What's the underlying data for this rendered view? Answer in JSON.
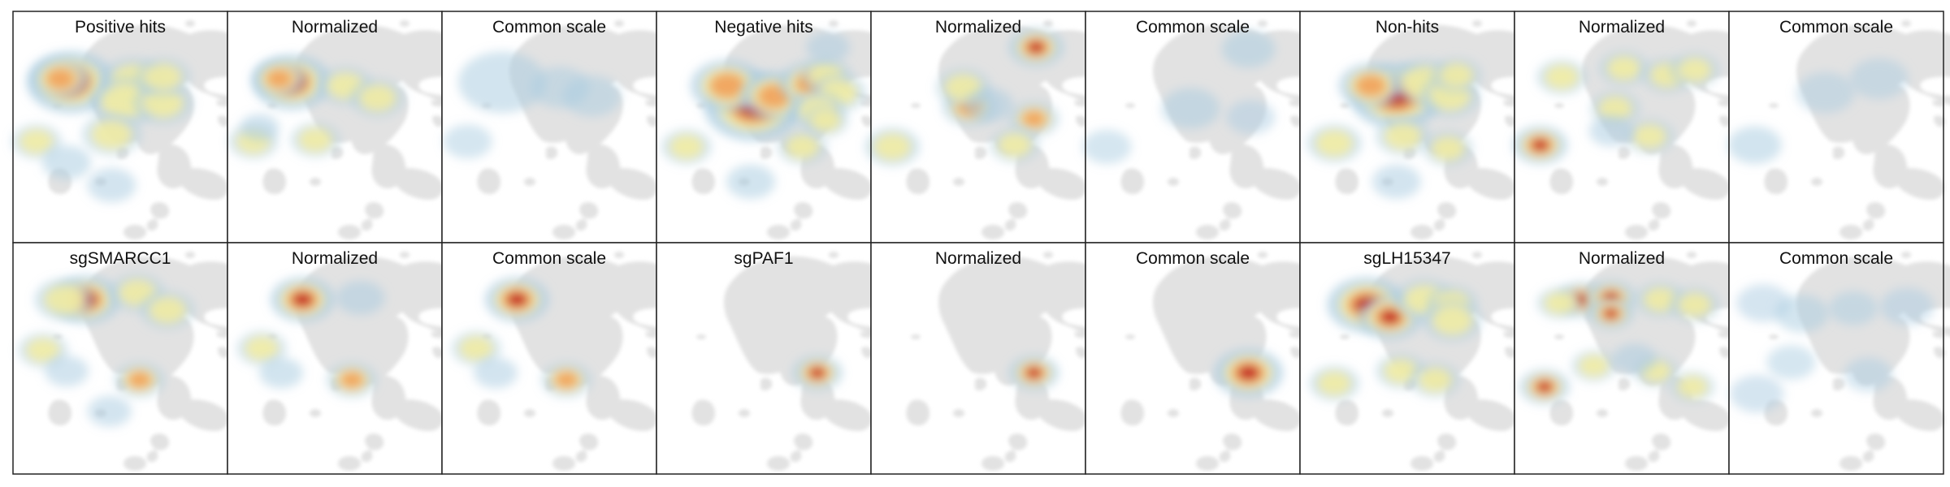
{
  "colors": {
    "background_cells": "#e2e2e2",
    "panel_border": "#222222",
    "density_low": "#a9cbe0",
    "density_mid": "#f4eda0",
    "density_high": "#f2a15a",
    "density_max": "#c0161e"
  },
  "panels": [
    {
      "title": "Positive hits",
      "hotspots": [
        [
          0.27,
          0.22,
          0.95,
          1.8
        ],
        [
          0.22,
          0.2,
          0.8,
          1.2
        ],
        [
          0.56,
          0.21,
          0.4,
          1.3
        ],
        [
          0.52,
          0.33,
          0.45,
          1.4
        ],
        [
          0.7,
          0.34,
          0.45,
          1.2
        ],
        [
          0.7,
          0.19,
          0.3,
          1.1
        ],
        [
          0.11,
          0.56,
          0.35,
          1.0
        ],
        [
          0.46,
          0.52,
          0.3,
          1.2
        ],
        [
          0.25,
          0.68,
          0.25,
          1.0
        ],
        [
          0.46,
          0.81,
          0.2,
          1.0
        ]
      ]
    },
    {
      "title": "Normalized",
      "hotspots": [
        [
          0.3,
          0.22,
          0.95,
          1.6
        ],
        [
          0.24,
          0.2,
          0.8,
          1.1
        ],
        [
          0.55,
          0.24,
          0.35,
          1.1
        ],
        [
          0.7,
          0.31,
          0.3,
          1.1
        ],
        [
          0.12,
          0.56,
          0.35,
          1.0
        ],
        [
          0.41,
          0.55,
          0.3,
          1.0
        ],
        [
          0.15,
          0.48,
          0.2,
          0.8
        ]
      ]
    },
    {
      "title": "Common scale",
      "hotspots": [
        [
          0.28,
          0.22,
          0.22,
          1.8
        ],
        [
          0.55,
          0.25,
          0.12,
          1.2
        ],
        [
          0.7,
          0.3,
          0.12,
          1.2
        ],
        [
          0.12,
          0.56,
          0.12,
          1.0
        ]
      ]
    },
    {
      "title": "Negative hits",
      "hotspots": [
        [
          0.45,
          0.36,
          0.95,
          2.0
        ],
        [
          0.33,
          0.24,
          0.8,
          1.5
        ],
        [
          0.55,
          0.3,
          0.75,
          1.4
        ],
        [
          0.72,
          0.23,
          0.6,
          1.3
        ],
        [
          0.79,
          0.18,
          0.5,
          1.0
        ],
        [
          0.85,
          0.28,
          0.45,
          1.1
        ],
        [
          0.75,
          0.38,
          0.35,
          1.1
        ],
        [
          0.14,
          0.59,
          0.45,
          1.0
        ],
        [
          0.68,
          0.59,
          0.4,
          1.0
        ],
        [
          0.79,
          0.44,
          0.3,
          0.9
        ],
        [
          0.8,
          0.02,
          0.2,
          0.9
        ],
        [
          0.44,
          0.79,
          0.25,
          1.0
        ]
      ]
    },
    {
      "title": "Normalized",
      "hotspots": [
        [
          0.77,
          0.02,
          0.95,
          1.1
        ],
        [
          0.46,
          0.36,
          0.6,
          1.1
        ],
        [
          0.76,
          0.43,
          0.6,
          1.0
        ],
        [
          0.1,
          0.59,
          0.5,
          1.1
        ],
        [
          0.43,
          0.25,
          0.3,
          1.1
        ],
        [
          0.67,
          0.58,
          0.35,
          1.0
        ],
        [
          0.55,
          0.35,
          0.2,
          1.0
        ]
      ]
    },
    {
      "title": "Common scale",
      "hotspots": [
        [
          0.76,
          0.03,
          0.25,
          1.1
        ],
        [
          0.49,
          0.37,
          0.22,
          1.2
        ],
        [
          0.77,
          0.42,
          0.15,
          1.0
        ],
        [
          0.1,
          0.59,
          0.12,
          1.0
        ]
      ]
    },
    {
      "title": "Non-hits",
      "hotspots": [
        [
          0.45,
          0.3,
          0.95,
          1.9
        ],
        [
          0.33,
          0.24,
          0.8,
          1.3
        ],
        [
          0.58,
          0.22,
          0.5,
          1.3
        ],
        [
          0.7,
          0.3,
          0.45,
          1.2
        ],
        [
          0.73,
          0.18,
          0.4,
          1.0
        ],
        [
          0.16,
          0.57,
          0.45,
          1.1
        ],
        [
          0.48,
          0.53,
          0.3,
          1.1
        ],
        [
          0.69,
          0.6,
          0.4,
          1.0
        ],
        [
          0.45,
          0.79,
          0.2,
          1.0
        ]
      ]
    },
    {
      "title": "Normalized",
      "hotspots": [
        [
          0.12,
          0.58,
          0.95,
          1.1
        ],
        [
          0.22,
          0.19,
          0.45,
          1.0
        ],
        [
          0.51,
          0.14,
          0.45,
          1.0
        ],
        [
          0.71,
          0.18,
          0.4,
          1.0
        ],
        [
          0.84,
          0.15,
          0.35,
          1.0
        ],
        [
          0.47,
          0.37,
          0.3,
          1.0
        ],
        [
          0.63,
          0.53,
          0.35,
          1.0
        ],
        [
          0.45,
          0.5,
          0.2,
          0.9
        ]
      ]
    },
    {
      "title": "Common scale",
      "hotspots": [
        [
          0.12,
          0.58,
          0.25,
          1.1
        ],
        [
          0.45,
          0.28,
          0.1,
          1.2
        ],
        [
          0.7,
          0.2,
          0.1,
          1.2
        ]
      ]
    },
    {
      "title": "sgSMARCC1",
      "hotspots": [
        [
          0.34,
          0.14,
          0.95,
          1.4
        ],
        [
          0.24,
          0.14,
          0.5,
          1.2
        ],
        [
          0.58,
          0.1,
          0.3,
          1.1
        ],
        [
          0.72,
          0.2,
          0.3,
          1.1
        ],
        [
          0.14,
          0.43,
          0.35,
          1.0
        ],
        [
          0.59,
          0.6,
          0.65,
          1.0
        ],
        [
          0.25,
          0.55,
          0.2,
          0.9
        ],
        [
          0.45,
          0.78,
          0.2,
          0.9
        ]
      ]
    },
    {
      "title": "Normalized",
      "hotspots": [
        [
          0.35,
          0.14,
          0.95,
          1.3
        ],
        [
          0.58,
          0.6,
          0.65,
          1.0
        ],
        [
          0.16,
          0.42,
          0.35,
          1.0
        ],
        [
          0.25,
          0.56,
          0.25,
          0.9
        ],
        [
          0.62,
          0.13,
          0.2,
          1.0
        ]
      ]
    },
    {
      "title": "Common scale",
      "hotspots": [
        [
          0.35,
          0.14,
          0.9,
          1.3
        ],
        [
          0.58,
          0.6,
          0.6,
          1.0
        ],
        [
          0.16,
          0.42,
          0.3,
          1.0
        ],
        [
          0.25,
          0.56,
          0.2,
          0.9
        ]
      ]
    },
    {
      "title": "sgPAF1",
      "hotspots": [
        [
          0.75,
          0.56,
          0.95,
          1.0
        ]
      ]
    },
    {
      "title": "Normalized",
      "hotspots": [
        [
          0.76,
          0.56,
          0.95,
          1.0
        ]
      ]
    },
    {
      "title": "Common scale",
      "hotspots": [
        [
          0.76,
          0.56,
          1.0,
          1.4
        ]
      ]
    },
    {
      "title": "sgLH15347",
      "hotspots": [
        [
          0.31,
          0.17,
          0.95,
          1.6
        ],
        [
          0.42,
          0.24,
          0.85,
          1.3
        ],
        [
          0.58,
          0.14,
          0.35,
          1.2
        ],
        [
          0.71,
          0.16,
          0.5,
          1.0
        ],
        [
          0.71,
          0.26,
          0.35,
          1.2
        ],
        [
          0.16,
          0.62,
          0.5,
          1.0
        ],
        [
          0.47,
          0.55,
          0.45,
          1.0
        ],
        [
          0.63,
          0.6,
          0.4,
          1.0
        ]
      ]
    },
    {
      "title": "Normalized",
      "hotspots": [
        [
          0.31,
          0.14,
          0.9,
          1.0
        ],
        [
          0.45,
          0.13,
          0.95,
          1.0
        ],
        [
          0.45,
          0.22,
          0.95,
          0.9
        ],
        [
          0.21,
          0.16,
          0.45,
          0.9
        ],
        [
          0.68,
          0.14,
          0.5,
          1.0
        ],
        [
          0.84,
          0.17,
          0.4,
          1.0
        ],
        [
          0.14,
          0.64,
          0.85,
          1.0
        ],
        [
          0.37,
          0.52,
          0.35,
          0.9
        ],
        [
          0.66,
          0.55,
          0.35,
          0.9
        ],
        [
          0.83,
          0.64,
          0.3,
          0.9
        ],
        [
          0.56,
          0.48,
          0.2,
          0.9
        ]
      ]
    },
    {
      "title": "Common scale",
      "hotspots": [
        [
          0.16,
          0.16,
          0.15,
          1.1
        ],
        [
          0.34,
          0.22,
          0.18,
          1.1
        ],
        [
          0.58,
          0.19,
          0.12,
          1.0
        ],
        [
          0.83,
          0.18,
          0.15,
          1.1
        ],
        [
          0.29,
          0.5,
          0.12,
          1.0
        ],
        [
          0.65,
          0.57,
          0.13,
          1.0
        ],
        [
          0.13,
          0.68,
          0.15,
          1.1
        ]
      ]
    }
  ]
}
